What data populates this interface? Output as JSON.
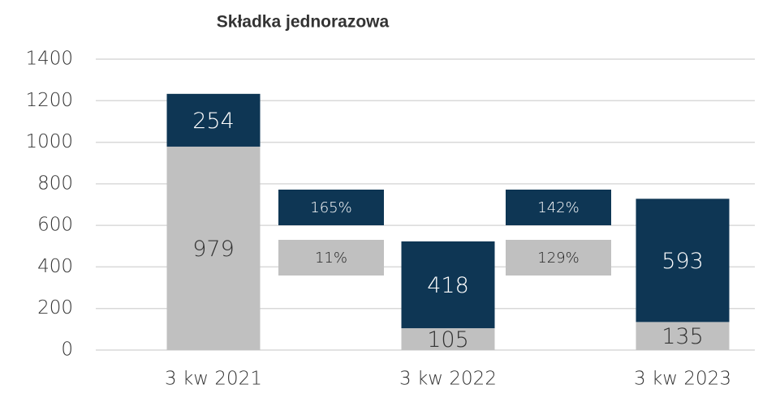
{
  "chart_data": {
    "type": "stacked_bar",
    "title": "Składka jednorazowa",
    "categories": [
      "3 kw 2021",
      "3 kw 2022",
      "3 kw 2023"
    ],
    "series": [
      {
        "color": "#c0c0c0",
        "values": [
          979,
          105,
          135
        ]
      },
      {
        "color": "#0e3654",
        "values": [
          254,
          418,
          593
        ]
      }
    ],
    "ylim": [
      0,
      1400
    ],
    "yticks": [
      0,
      200,
      400,
      600,
      800,
      1000,
      1200,
      1400
    ],
    "grid": true,
    "annotations": [
      {
        "text": "165%",
        "color": "#0e3654"
      },
      {
        "text": "11%",
        "color": "#c0c0c0"
      },
      {
        "text": "142%",
        "color": "#0e3654"
      },
      {
        "text": "129%",
        "color": "#c0c0c0"
      }
    ]
  }
}
